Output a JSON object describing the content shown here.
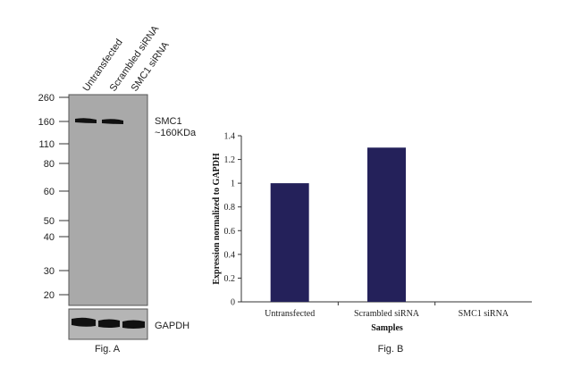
{
  "figure_a": {
    "lanes": [
      "Untransfected",
      "Scrambled siRNA",
      "SMC1 siRNA"
    ],
    "markers": [
      "260",
      "160",
      "110",
      "80",
      "60",
      "50",
      "40",
      "30",
      "20"
    ],
    "band_label_1": "SMC1",
    "band_label_2": "~160KDa",
    "control_label": "GAPDH",
    "caption": "Fig. A",
    "colors": {
      "membrane": "#a9a9a9",
      "band": "#111111"
    }
  },
  "chart_data": {
    "type": "bar",
    "categories": [
      "Untransfected",
      "Scrambled siRNA",
      "SMC1 siRNA"
    ],
    "values": [
      1.0,
      1.3,
      0.0
    ],
    "xlabel": "Samples",
    "ylabel": "Expression normalized to GAPDH",
    "ylim": [
      0,
      1.4
    ],
    "yticks": [
      "0",
      "0.2",
      "0.4",
      "0.6",
      "0.8",
      "1",
      "1.2",
      "1.4"
    ],
    "grid": false,
    "legend": "none",
    "bar_color": "#24215a"
  },
  "figure_b": {
    "caption": "Fig. B"
  }
}
